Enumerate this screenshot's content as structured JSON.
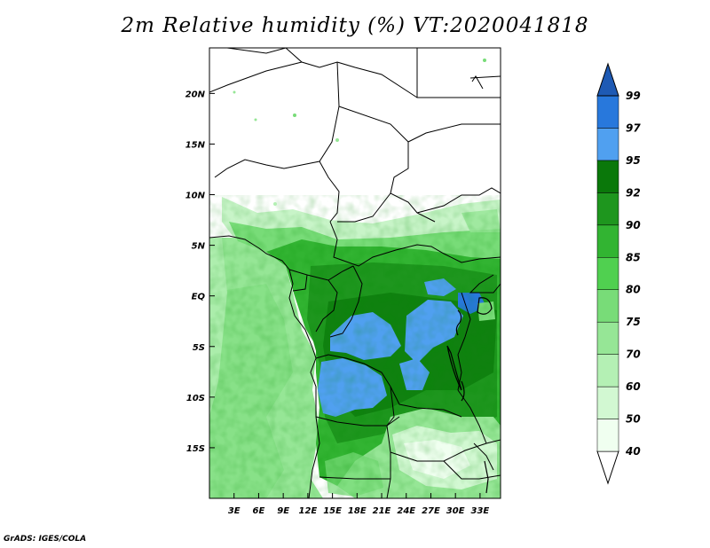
{
  "title": "2m Relative humidity (%) VT:2020041818",
  "credit": "GrADS: IGES/COLA",
  "map": {
    "lon_range": [
      0,
      35.5
    ],
    "lat_range": [
      -20,
      24.5
    ],
    "lon_ticks": [
      "3E",
      "6E",
      "9E",
      "12E",
      "15E",
      "18E",
      "21E",
      "24E",
      "27E",
      "30E",
      "33E"
    ],
    "lat_ticks": [
      "20N",
      "15N",
      "10N",
      "5N",
      "EQ",
      "5S",
      "10S",
      "15S"
    ]
  },
  "colorbar": {
    "levels": [
      "40",
      "50",
      "60",
      "70",
      "75",
      "80",
      "85",
      "90",
      "92",
      "95",
      "97",
      "99"
    ],
    "colors": [
      "#f0fff0",
      "#d2f8d2",
      "#b4f0b4",
      "#96e696",
      "#78dc78",
      "#50d050",
      "#32b432",
      "#1e961e",
      "#0a780a",
      "#50a0f0",
      "#2878dc",
      "#1e5ab4",
      "#ffffff"
    ]
  }
}
